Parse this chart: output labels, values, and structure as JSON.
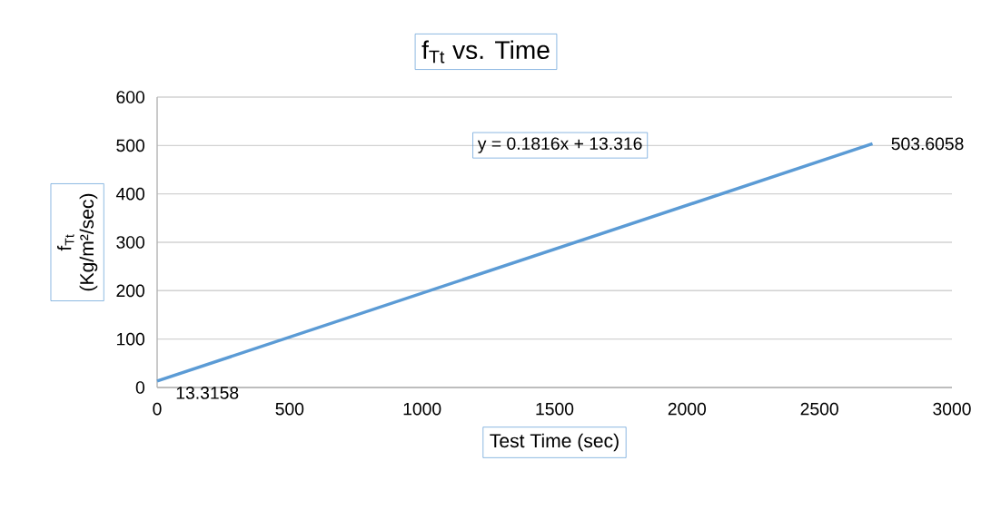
{
  "chart_data": {
    "type": "line",
    "title": "f$_{Tt}$ vs. Time",
    "xlabel": "Test Time (sec)",
    "ylabel": "f$_{Tt}$ (Kg/m²/sec)",
    "x": [
      0,
      2700
    ],
    "values": [
      13.3158,
      503.6058
    ],
    "color": "#5b9bd5",
    "value_labels": [
      "13.3158",
      "503.6058"
    ],
    "annotations": [
      "y = 0.1816x + 13.316"
    ],
    "xlim": [
      0,
      3000
    ],
    "ylim": [
      0,
      600
    ],
    "xticks": [
      0,
      500,
      1000,
      1500,
      2000,
      2500,
      3000
    ],
    "yticks": [
      0,
      100,
      200,
      300,
      400,
      500,
      600
    ],
    "grid": "y"
  }
}
